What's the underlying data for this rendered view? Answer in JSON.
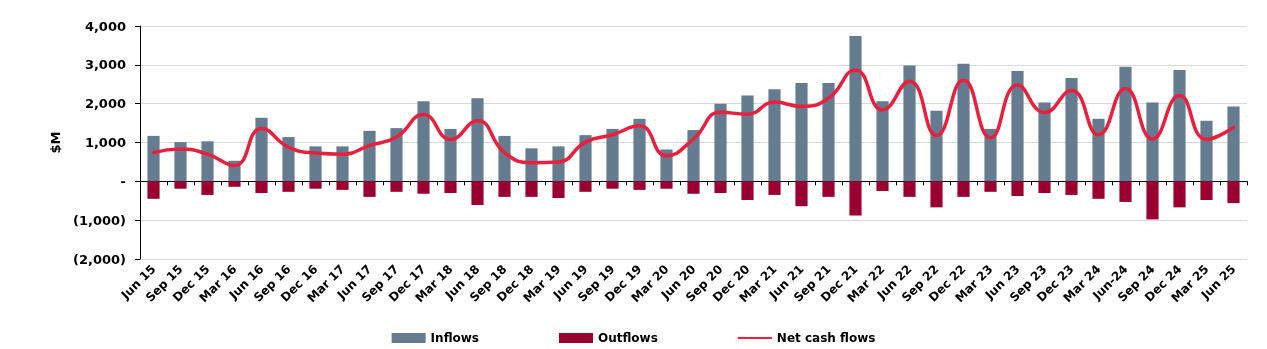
{
  "chart_data": {
    "type": "bar",
    "ylabel": "$M",
    "categories": [
      "Jun 15",
      "Sep 15",
      "Dec 15",
      "Mar 16",
      "Jun 16",
      "Sep 16",
      "Dec 16",
      "Mar 17",
      "Jun 17",
      "Sep 17",
      "Dec 17",
      "Mar 18",
      "Jun 18",
      "Sep 18",
      "Dec 18",
      "Mar 19",
      "Jun 19",
      "Sep 19",
      "Dec 19",
      "Mar 20",
      "Jun 20",
      "Sep 20",
      "Dec 20",
      "Mar 21",
      "Jun 21",
      "Sep 21",
      "Dec 21",
      "Mar 22",
      "Jun 22",
      "Sep 22",
      "Dec 22",
      "Mar 23",
      "Jun 23",
      "Sep 23",
      "Dec 23",
      "Mar 24",
      "Jun-24",
      "Sep 24",
      "Dec 24",
      "Mar 25",
      "Jun 25"
    ],
    "series": [
      {
        "name": "Inflows",
        "color": "#657b90",
        "values": [
          1170,
          1010,
          1030,
          530,
          1640,
          1140,
          900,
          900,
          1300,
          1370,
          2060,
          1350,
          2140,
          1170,
          850,
          900,
          1190,
          1350,
          1610,
          820,
          1320,
          2000,
          2210,
          2370,
          2530,
          2530,
          3740,
          2060,
          2980,
          1820,
          3030,
          1350,
          2840,
          2030,
          2660,
          1610,
          2950,
          2030,
          2870,
          1560,
          1930
        ]
      },
      {
        "name": "Outflows",
        "color": "#990030",
        "values": [
          -450,
          -190,
          -350,
          -140,
          -300,
          -270,
          -190,
          -220,
          -400,
          -270,
          -320,
          -300,
          -610,
          -400,
          -400,
          -430,
          -270,
          -190,
          -220,
          -190,
          -320,
          -300,
          -480,
          -350,
          -640,
          -400,
          -880,
          -250,
          -400,
          -670,
          -400,
          -270,
          -380,
          -300,
          -350,
          -450,
          -530,
          -980,
          -670,
          -480,
          -560
        ]
      },
      {
        "name": "Net cash flows",
        "type": "line",
        "color": "#e8203e",
        "marker": "none",
        "values": [
          740,
          830,
          700,
          410,
          1360,
          880,
          730,
          700,
          920,
          1140,
          1720,
          1080,
          1560,
          740,
          480,
          500,
          1010,
          1200,
          1430,
          660,
          1090,
          1780,
          1730,
          2040,
          1930,
          2140,
          2870,
          1840,
          2580,
          1180,
          2610,
          1120,
          2480,
          1770,
          2340,
          1200,
          2390,
          1090,
          2210,
          1080,
          1390
        ]
      }
    ],
    "stacked": true,
    "ylim": [
      -2000,
      4000
    ],
    "yticks": [
      {
        "value": -2000,
        "label": "(2,000)"
      },
      {
        "value": -1000,
        "label": "(1,000)"
      },
      {
        "value": 0,
        "label": "-"
      },
      {
        "value": 1000,
        "label": "1,000"
      },
      {
        "value": 2000,
        "label": "2,000"
      },
      {
        "value": 3000,
        "label": "3,000"
      },
      {
        "value": 4000,
        "label": "4,000"
      }
    ],
    "grid": "y",
    "legend": "bottom"
  }
}
